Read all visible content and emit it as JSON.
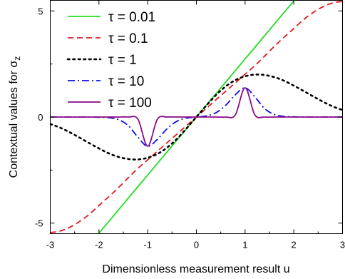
{
  "chart_data": {
    "type": "line",
    "title": "",
    "xlabel": "Dimensionless measurement result u",
    "ylabel": "Contextual values for σ",
    "ylabel_subscript": "z",
    "xlim": [
      -3,
      3
    ],
    "ylim": [
      -5.5,
      5.5
    ],
    "xticks": [
      -3,
      -2,
      -1,
      0,
      1,
      2,
      3
    ],
    "xtick_labels": [
      "-3",
      "-2",
      "-1",
      "0",
      "1",
      "2",
      "3"
    ],
    "yticks": [
      -5,
      0,
      5
    ],
    "ytick_labels": [
      "-5",
      "0",
      "5"
    ],
    "grid": false,
    "legend_position": "top-left",
    "x": [
      -3,
      -2.8,
      -2.6,
      -2.4,
      -2.2,
      -2,
      -1.8,
      -1.6,
      -1.4,
      -1.2,
      -1,
      -0.8,
      -0.6,
      -0.4,
      -0.2,
      0,
      0.2,
      0.4,
      0.6,
      0.8,
      1,
      1.2,
      1.4,
      1.6,
      1.8,
      2,
      2.2,
      2.4,
      2.6,
      2.8,
      3
    ],
    "series": [
      {
        "name": "τ = 0.01",
        "color": "#22dd22",
        "dash": "solid",
        "values": [
          -8.21,
          -7.66,
          -7.11,
          -6.57,
          -6.02,
          -5.47,
          -4.93,
          -4.38,
          -3.83,
          -3.28,
          -2.74,
          -2.19,
          -1.64,
          -1.09,
          -0.55,
          0,
          0.55,
          1.09,
          1.64,
          2.19,
          2.74,
          3.28,
          3.83,
          4.38,
          4.93,
          5.47,
          6.02,
          6.57,
          7.11,
          7.66,
          8.21
        ]
      },
      {
        "name": "τ = 0.1",
        "color": "#e8161e",
        "dash": "dashed",
        "values": [
          -5.45,
          -5.38,
          -5.2,
          -4.93,
          -4.59,
          -4.17,
          -3.76,
          -3.33,
          -2.87,
          -2.42,
          -2.02,
          -1.61,
          -1.21,
          -0.81,
          -0.4,
          0,
          0.4,
          0.81,
          1.21,
          1.61,
          2.02,
          2.42,
          2.87,
          3.33,
          3.76,
          4.17,
          4.59,
          4.93,
          5.2,
          5.38,
          5.45
        ]
      },
      {
        "name": "τ = 1",
        "color": "#000000",
        "dash": "dotted",
        "values": [
          -0.33,
          -0.5,
          -0.72,
          -0.97,
          -1.23,
          -1.48,
          -1.71,
          -1.88,
          -1.98,
          -2.0,
          -1.92,
          -1.74,
          -1.44,
          -1.03,
          -0.53,
          0,
          0.53,
          1.03,
          1.44,
          1.74,
          1.92,
          2.0,
          1.98,
          1.88,
          1.71,
          1.48,
          1.23,
          0.97,
          0.72,
          0.5,
          0.33
        ]
      },
      {
        "name": "τ = 10",
        "color": "#0d0de8",
        "dash": "dashdot",
        "values": [
          0,
          0,
          0,
          0,
          0,
          -0.01,
          -0.03,
          -0.12,
          -0.4,
          -0.95,
          -1.38,
          -1.05,
          -0.55,
          -0.2,
          -0.05,
          0,
          0.05,
          0.2,
          0.55,
          1.05,
          1.38,
          0.95,
          0.4,
          0.12,
          0.03,
          0.01,
          0,
          0,
          0,
          0,
          0
        ]
      },
      {
        "name": "τ = 100",
        "color": "#8a0a8a",
        "dash": "solid",
        "values": [
          0,
          0,
          0,
          0,
          0,
          0,
          0,
          0,
          0,
          -0.1,
          -1.38,
          -0.1,
          0,
          0,
          0,
          0,
          0,
          0,
          0,
          0.1,
          1.38,
          0.1,
          0,
          0,
          0,
          0,
          0,
          0,
          0,
          0,
          0
        ]
      }
    ]
  }
}
